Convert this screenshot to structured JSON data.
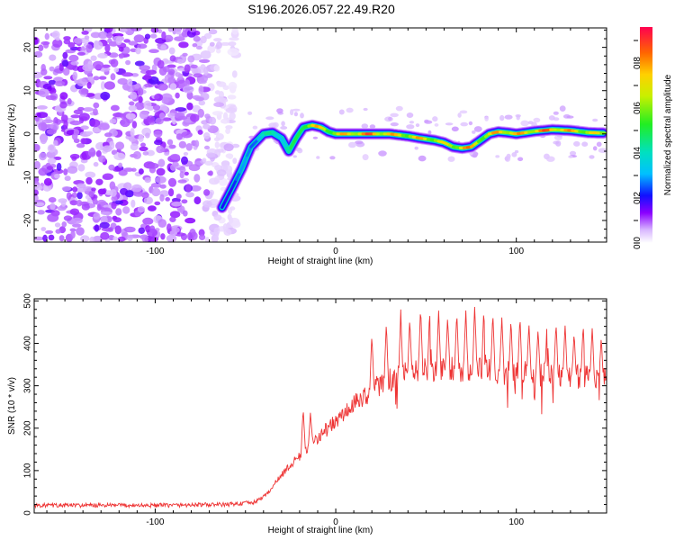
{
  "title": "S196.2026.057.22.49.R20",
  "chart_data": [
    {
      "type": "heatmap",
      "xlabel": "Height of straight line (km)",
      "ylabel": "Frequency (Hz)",
      "xlim": [
        -167,
        150
      ],
      "ylim": [
        -25,
        24.5
      ],
      "xticks": [
        -100,
        0,
        100
      ],
      "yticks": [
        -20,
        -10,
        0,
        10,
        20
      ],
      "colorbar": {
        "label": "Normalized spectral amplitude",
        "range": [
          0,
          0.96
        ],
        "ticks": [
          0.0,
          0.2,
          0.4,
          0.6,
          0.8
        ]
      },
      "ridge": {
        "description_x": [
          -63,
          -58,
          -52,
          -47,
          -40,
          -35,
          -30,
          -26,
          -22,
          -18,
          -13,
          -8,
          -4,
          0,
          10,
          20,
          30,
          40,
          47,
          55,
          60,
          65,
          70,
          75,
          80,
          85,
          90,
          95,
          100,
          110,
          120,
          130,
          140,
          148
        ],
        "frequency": [
          -17,
          -13,
          -8,
          -3,
          0,
          0.3,
          -1,
          -4,
          -1,
          1.5,
          2,
          1.5,
          0.5,
          0,
          0,
          0,
          0,
          -0.5,
          -1,
          -1.5,
          -2,
          -3,
          -3.3,
          -3,
          -1.5,
          0,
          0.5,
          0.3,
          0,
          0.6,
          1,
          0.8,
          0.3,
          0.2
        ],
        "amplitude": [
          0.25,
          0.3,
          0.3,
          0.35,
          0.45,
          0.5,
          0.45,
          0.5,
          0.55,
          0.75,
          0.85,
          0.8,
          0.75,
          0.8,
          0.9,
          0.95,
          0.85,
          0.8,
          0.85,
          0.8,
          0.75,
          0.8,
          0.92,
          0.85,
          0.8,
          0.8,
          0.9,
          0.9,
          0.85,
          0.9,
          0.95,
          0.85,
          0.8,
          0.75
        ]
      },
      "noise_region_x": [
        -167,
        -55
      ]
    },
    {
      "type": "line",
      "xlabel": "Height of straight line (km)",
      "ylabel": "SNR (10 * v/v)",
      "xlim": [
        -167,
        150
      ],
      "ylim": [
        0,
        505
      ],
      "xticks": [
        -100,
        0,
        100
      ],
      "yticks": [
        0,
        100,
        200,
        300,
        400,
        500
      ],
      "color": "#ee3333",
      "envelope": {
        "x": [
          -167,
          -100,
          -60,
          -45,
          -38,
          -30,
          -20,
          -10,
          0,
          10,
          20,
          30,
          40,
          50,
          60,
          70,
          80,
          90,
          100,
          110,
          120,
          130,
          140,
          150
        ],
        "base": [
          18,
          18,
          20,
          25,
          45,
          90,
          135,
          180,
          215,
          255,
          290,
          315,
          330,
          338,
          340,
          340,
          337,
          332,
          330,
          328,
          325,
          322,
          318,
          315
        ]
      },
      "spike_peaks": {
        "x": [
          -18,
          -14,
          20,
          28,
          36,
          41,
          47,
          52,
          57,
          62,
          67,
          72,
          77,
          82,
          87,
          92,
          97,
          102,
          107,
          112,
          117,
          122,
          127,
          132,
          137,
          142,
          147
        ],
        "snr": [
          255,
          240,
          430,
          455,
          480,
          470,
          495,
          480,
          485,
          470,
          480,
          485,
          500,
          490,
          480,
          475,
          460,
          470,
          455,
          440,
          450,
          460,
          450,
          430,
          455,
          445,
          420
        ]
      }
    }
  ]
}
